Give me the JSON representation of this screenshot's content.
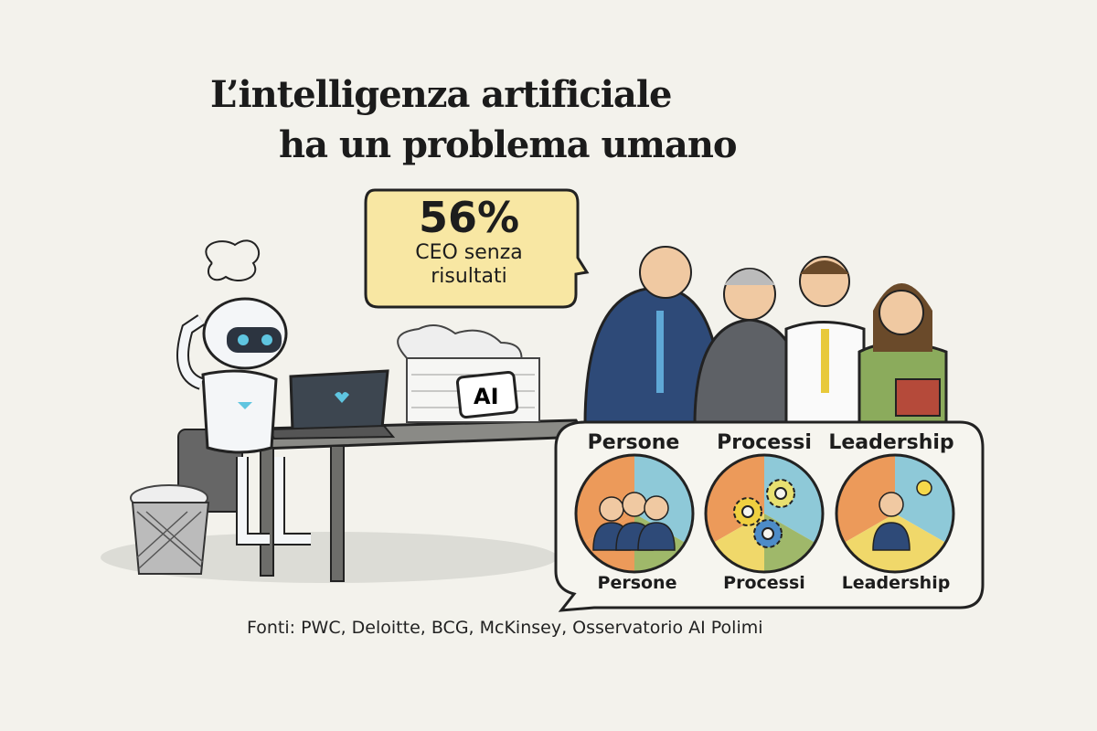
{
  "title": {
    "line1": "L’intelligenza artificiale",
    "line2": "ha un problema umano"
  },
  "stat": {
    "value": "56%",
    "label_line1": "CEO senza",
    "label_line2": "risultati",
    "bubble_color": "#f8e7a3"
  },
  "laptop_label": "AI",
  "pillars": [
    {
      "top_label": "Persone",
      "bottom_label": "Persone",
      "icon": "people-icon"
    },
    {
      "top_label": "Processi",
      "bottom_label": "Processi",
      "icon": "gears-icon"
    },
    {
      "top_label": "Leadership",
      "bottom_label": "Leadership",
      "icon": "leader-lightbulb-icon"
    }
  ],
  "colors": {
    "orange": "#ec9a5a",
    "blue": "#8ec9d8",
    "yellow": "#f0d86a",
    "green": "#9fb86a",
    "background": "#f3f2ec"
  },
  "footer": "Fonti: PWC, Deloitte, BCG, McKinsey, Osservatorio AI Polimi"
}
